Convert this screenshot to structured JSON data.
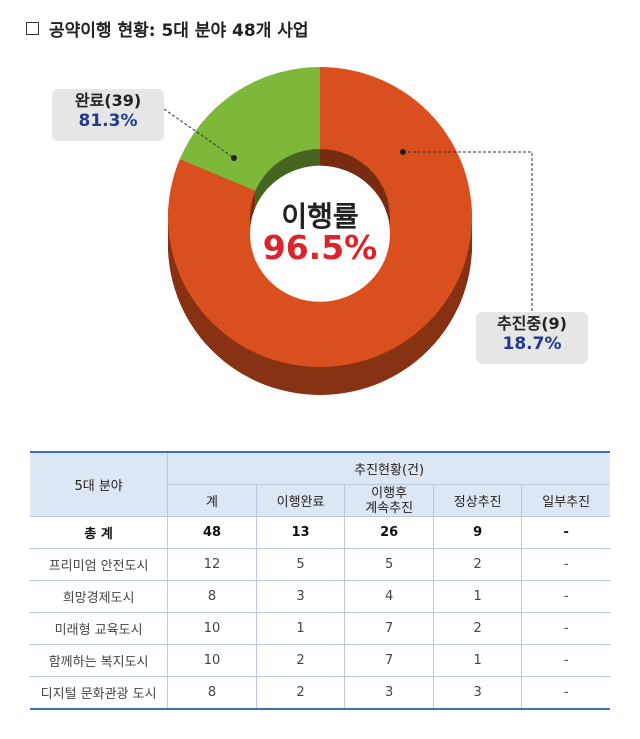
{
  "title": "공약이행 현황: 5대 분야 48개 사업",
  "chart_data": {
    "type": "pie",
    "variant": "donut",
    "slices": [
      {
        "name": "완료",
        "count": 39,
        "value": 81.3,
        "label_name": "완료(39)",
        "label_pct": "81.3%",
        "color": "#d9501e"
      },
      {
        "name": "추진중",
        "count": 9,
        "value": 18.7,
        "label_name": "추진중(9)",
        "label_pct": "18.7%",
        "color": "#7db83a"
      }
    ],
    "center_label": "이행률",
    "center_value": "96.5%"
  },
  "table": {
    "col_group_header": "5대 분야",
    "group_header": "추진현황(건)",
    "headers": [
      "계",
      "이행완료",
      "이행후\n계속추진",
      "정상추진",
      "일부추진"
    ],
    "header_line1": "이행후",
    "header_line2": "계속추진",
    "rows": [
      {
        "name": "총 계",
        "values": [
          "48",
          "13",
          "26",
          "9",
          "-"
        ]
      },
      {
        "name": "프리미엄 안전도시",
        "values": [
          "12",
          "5",
          "5",
          "2",
          "-"
        ]
      },
      {
        "name": "희망경제도시",
        "values": [
          "8",
          "3",
          "4",
          "1",
          "-"
        ]
      },
      {
        "name": "미래형 교육도시",
        "values": [
          "10",
          "1",
          "7",
          "2",
          "-"
        ]
      },
      {
        "name": "함께하는 복지도시",
        "values": [
          "10",
          "2",
          "7",
          "1",
          "-"
        ]
      },
      {
        "name": "디지털 문화관광 도시",
        "values": [
          "8",
          "2",
          "3",
          "3",
          "-"
        ]
      }
    ]
  }
}
